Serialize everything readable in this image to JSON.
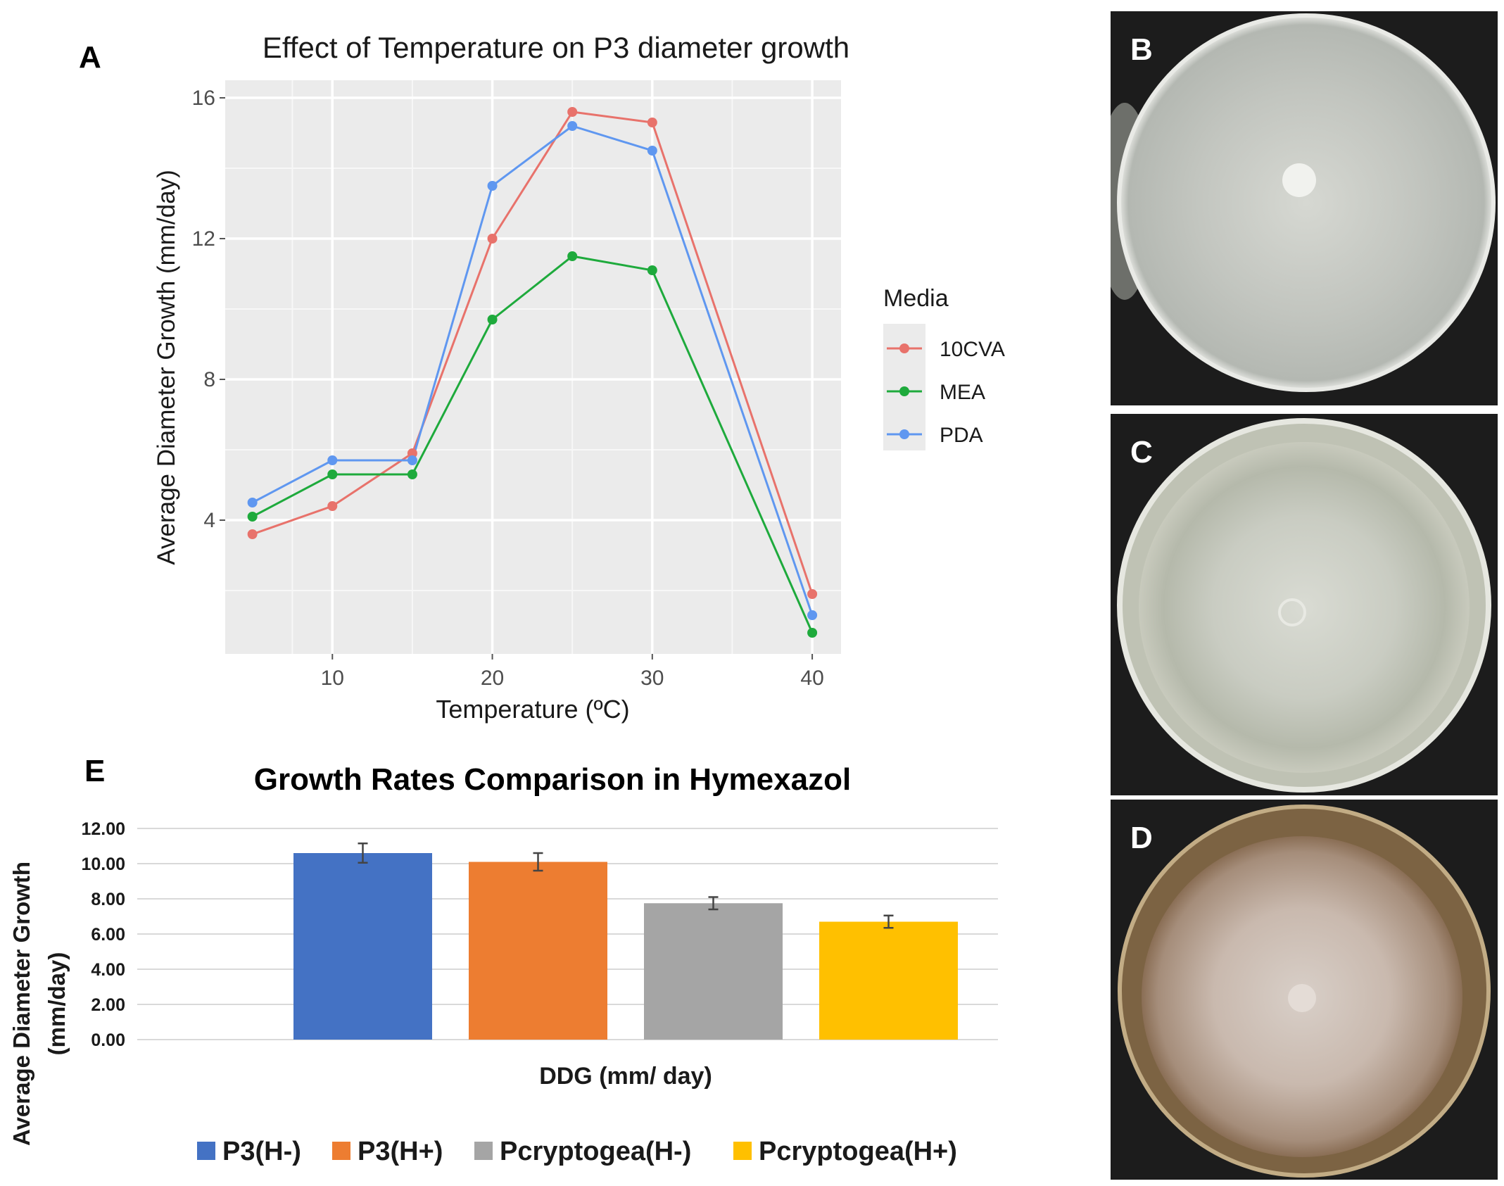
{
  "panels": {
    "a": {
      "letter": "A"
    },
    "b": {
      "letter": "B"
    },
    "c": {
      "letter": "C"
    },
    "d": {
      "letter": "D"
    },
    "e": {
      "letter": "E"
    }
  },
  "chart_data": [
    {
      "type": "line",
      "panel": "A",
      "title": "Effect of Temperature on P3 diameter growth",
      "xlabel": "Temperature (ºC)",
      "ylabel": "Average Diameter Growth (mm/day)",
      "x": [
        5,
        10,
        15,
        20,
        25,
        30,
        40
      ],
      "xlim": [
        3.3,
        41.8
      ],
      "ylim": [
        0.2,
        16.5
      ],
      "xticks": [
        10,
        20,
        30,
        40
      ],
      "yticks": [
        4,
        8,
        12,
        16
      ],
      "tick_labels_x": [
        "10",
        "20",
        "30",
        "40"
      ],
      "tick_labels_y": [
        "4",
        "8",
        "12",
        "16"
      ],
      "grid": true,
      "legend_title": "Media",
      "legend_position": "right",
      "series": [
        {
          "name": "10CVA",
          "color": "#e8726b",
          "values": [
            3.6,
            4.4,
            5.9,
            12.0,
            15.6,
            15.3,
            1.9
          ]
        },
        {
          "name": "MEA",
          "color": "#1eaa3c",
          "values": [
            4.1,
            5.3,
            5.3,
            9.7,
            11.5,
            11.1,
            0.8
          ]
        },
        {
          "name": "PDA",
          "color": "#5f97f0",
          "values": [
            4.5,
            5.7,
            5.7,
            13.5,
            15.2,
            14.5,
            1.3
          ]
        }
      ]
    },
    {
      "type": "bar",
      "panel": "E",
      "title": "Growth Rates Comparison in Hymexazol",
      "xlabel": "DDG (mm/ day)",
      "ylabel": "Average Diameter Growth (mm/day)",
      "ylim": [
        0,
        12
      ],
      "yticks": [
        0,
        2,
        4,
        6,
        8,
        10,
        12
      ],
      "tick_labels_y": [
        "0.00",
        "2.00",
        "4.00",
        "6.00",
        "8.00",
        "10.00",
        "12.00"
      ],
      "grid": true,
      "legend_position": "bottom",
      "series": [
        {
          "name": "P3(H-)",
          "color": "#4472c4",
          "value": 10.6,
          "error": 0.55
        },
        {
          "name": "P3(H+)",
          "color": "#ed7d31",
          "value": 10.1,
          "error": 0.5
        },
        {
          "name": "Pcryptogea(H-)",
          "color": "#a5a5a5",
          "value": 7.75,
          "error": 0.35
        },
        {
          "name": "Pcryptogea(H+)",
          "color": "#ffc000",
          "value": 6.7,
          "error": 0.35
        }
      ]
    }
  ]
}
